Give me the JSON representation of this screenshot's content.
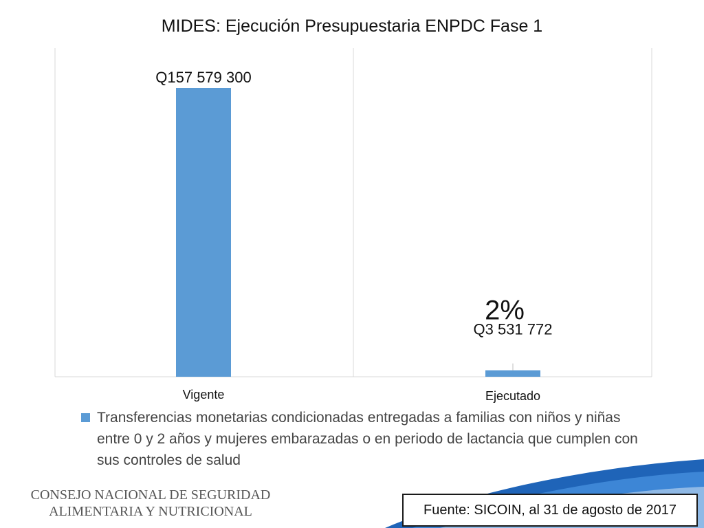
{
  "chart_data": {
    "type": "bar",
    "title": "MIDES: Ejecución Presupuestaria ENPDC Fase 1",
    "categories": [
      "Vigente",
      "Ejecutado"
    ],
    "series": [
      {
        "name": "Transferencias monetarias condicionadas entregadas a familias con niños y niñas entre 0 y 2 años y mujeres embarazadas o en periodo de lactancia que cumplen con sus controles de salud",
        "values": [
          157579300,
          3531772
        ],
        "data_labels": [
          "Q157 579 300",
          "Q3 531 772"
        ]
      }
    ],
    "annotations": [
      "2%"
    ],
    "grid": "vertical",
    "legend_position": "bottom",
    "colors": {
      "bar": "#5b9bd5",
      "border": "#d9d9d9"
    }
  },
  "footer": {
    "org_line1": "CONSEJO NACIONAL DE SEGURIDAD",
    "org_line2": "ALIMENTARIA Y NUTRICIONAL",
    "source": "Fuente: SICOIN, al 31 de agosto de 2017"
  }
}
